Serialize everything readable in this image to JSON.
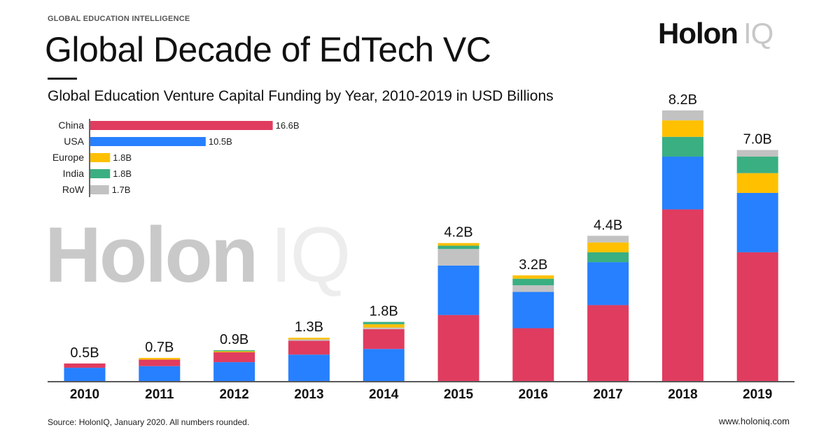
{
  "header": {
    "kicker": "GLOBAL EDUCATION INTELLIGENCE",
    "title": "Global Decade of EdTech VC",
    "logo_main": "Holon",
    "logo_suffix": "IQ"
  },
  "watermark": {
    "main": "Holon",
    "suffix": "IQ"
  },
  "footer": {
    "source": "Source: HolonIQ, January 2020. All numbers rounded.",
    "website": "www.holoniq.com"
  },
  "colors": {
    "China": "#e03c5f",
    "USA": "#2680ff",
    "Europe": "#ffc000",
    "India": "#3aaf82",
    "RoW": "#c2c2c2"
  },
  "chart_data": [
    {
      "type": "bar",
      "orientation": "horizontal",
      "categories": [
        "China",
        "USA",
        "Europe",
        "India",
        "RoW"
      ],
      "values": [
        16.6,
        10.5,
        1.8,
        1.8,
        1.7
      ],
      "labels": [
        "16.6B",
        "10.5B",
        "1.8B",
        "1.8B",
        "1.7B"
      ]
    },
    {
      "type": "bar",
      "stacked": true,
      "title": "Global Education Venture Capital Funding by Year, 2010-2019 in USD Billions",
      "categories": [
        "2010",
        "2011",
        "2012",
        "2013",
        "2014",
        "2015",
        "2016",
        "2017",
        "2018",
        "2019"
      ],
      "totals": [
        "0.5B",
        "0.7B",
        "0.9B",
        "1.3B",
        "1.8B",
        "4.2B",
        "3.2B",
        "4.4B",
        "8.2B",
        "7.0B"
      ],
      "grid": false,
      "stacks": [
        [
          [
            "USA",
            0.4
          ],
          [
            "China",
            0.13
          ]
        ],
        [
          [
            "USA",
            0.45
          ],
          [
            "China",
            0.2
          ],
          [
            "Europe",
            0.05
          ]
        ],
        [
          [
            "USA",
            0.57
          ],
          [
            "China",
            0.3
          ],
          [
            "Europe",
            0.03
          ],
          [
            "India",
            0.03
          ]
        ],
        [
          [
            "USA",
            0.8
          ],
          [
            "China",
            0.42
          ],
          [
            "RoW",
            0.04
          ],
          [
            "Europe",
            0.05
          ]
        ],
        [
          [
            "USA",
            0.97
          ],
          [
            "China",
            0.6
          ],
          [
            "RoW",
            0.05
          ],
          [
            "Europe",
            0.1
          ],
          [
            "India",
            0.07
          ]
        ],
        [
          [
            "China",
            2.0
          ],
          [
            "USA",
            1.5
          ],
          [
            "RoW",
            0.5
          ],
          [
            "India",
            0.1
          ],
          [
            "Europe",
            0.08
          ]
        ],
        [
          [
            "China",
            1.6
          ],
          [
            "USA",
            1.1
          ],
          [
            "RoW",
            0.2
          ],
          [
            "India",
            0.2
          ],
          [
            "Europe",
            0.1
          ]
        ],
        [
          [
            "China",
            2.3
          ],
          [
            "USA",
            1.3
          ],
          [
            "India",
            0.3
          ],
          [
            "Europe",
            0.3
          ],
          [
            "RoW",
            0.2
          ]
        ],
        [
          [
            "China",
            5.2
          ],
          [
            "USA",
            1.6
          ],
          [
            "India",
            0.6
          ],
          [
            "Europe",
            0.5
          ],
          [
            "RoW",
            0.3
          ]
        ],
        [
          [
            "China",
            3.9
          ],
          [
            "USA",
            1.8
          ],
          [
            "Europe",
            0.6
          ],
          [
            "India",
            0.5
          ],
          [
            "RoW",
            0.2
          ]
        ]
      ]
    }
  ]
}
